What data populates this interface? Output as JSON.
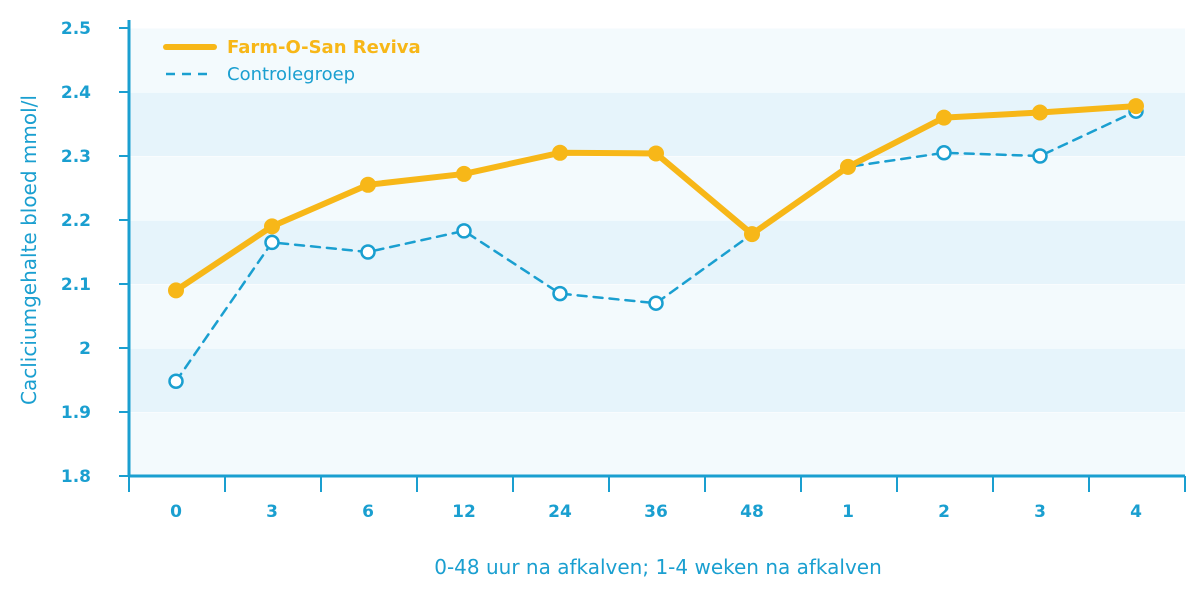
{
  "chart_data": {
    "type": "line",
    "title": "",
    "xlabel": "0-48 uur na afkalven; 1-4 weken na afkalven",
    "ylabel": "Cacliciumgehalte bloed mmol/l",
    "categories": [
      "0",
      "3",
      "6",
      "12",
      "24",
      "36",
      "48",
      "1",
      "2",
      "3",
      "4"
    ],
    "ylim": [
      1.8,
      2.5
    ],
    "yticks": [
      "1.8",
      "1.9",
      "2",
      "2.1",
      "2.2",
      "2.3",
      "2.4",
      "2.5"
    ],
    "grid": "horizontal bands",
    "legend_position": "top-left",
    "series": [
      {
        "name": "Farm-O-San Reviva",
        "color": "#f7b718",
        "style": "solid",
        "marker": "filled-circle",
        "values": [
          2.09,
          2.19,
          2.255,
          2.272,
          2.305,
          2.304,
          2.178,
          2.283,
          2.36,
          2.368,
          2.378
        ]
      },
      {
        "name": "Controlegroep",
        "color": "#1a9fd0",
        "style": "dashed",
        "marker": "open-circle",
        "values": [
          1.948,
          2.165,
          2.15,
          2.183,
          2.085,
          2.07,
          2.178,
          2.283,
          2.305,
          2.3,
          2.37
        ]
      }
    ],
    "colors": {
      "axis": "#1a9fd0",
      "band_light": "#f3fafd",
      "band_dark": "#e6f4fb"
    }
  }
}
